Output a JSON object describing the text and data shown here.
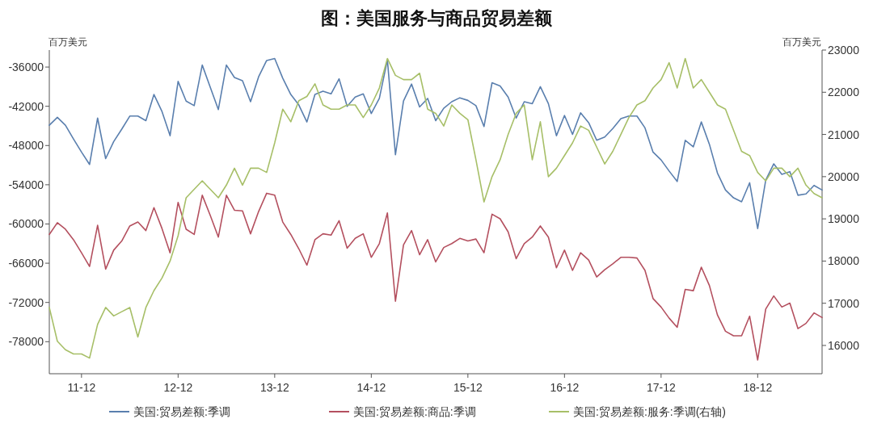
{
  "chart_data": {
    "type": "line",
    "title": "图：美国服务与商品贸易差额",
    "ylabel": "百万美元",
    "y2label": "百万美元",
    "x": [
      "2011-08",
      "2011-09",
      "2011-10",
      "2011-11",
      "2011-12",
      "2012-01",
      "2012-02",
      "2012-03",
      "2012-04",
      "2012-05",
      "2012-06",
      "2012-07",
      "2012-08",
      "2012-09",
      "2012-10",
      "2012-11",
      "2012-12",
      "2013-01",
      "2013-02",
      "2013-03",
      "2013-04",
      "2013-05",
      "2013-06",
      "2013-07",
      "2013-08",
      "2013-09",
      "2013-10",
      "2013-11",
      "2013-12",
      "2014-01",
      "2014-02",
      "2014-03",
      "2014-04",
      "2014-05",
      "2014-06",
      "2014-07",
      "2014-08",
      "2014-09",
      "2014-10",
      "2014-11",
      "2014-12",
      "2015-01",
      "2015-02",
      "2015-03",
      "2015-04",
      "2015-05",
      "2015-06",
      "2015-07",
      "2015-08",
      "2015-09",
      "2015-10",
      "2015-11",
      "2015-12",
      "2016-01",
      "2016-02",
      "2016-03",
      "2016-04",
      "2016-05",
      "2016-06",
      "2016-07",
      "2016-08",
      "2016-09",
      "2016-10",
      "2016-11",
      "2016-12",
      "2017-01",
      "2017-02",
      "2017-03",
      "2017-04",
      "2017-05",
      "2017-06",
      "2017-07",
      "2017-08",
      "2017-09",
      "2017-10",
      "2017-11",
      "2017-12",
      "2018-01",
      "2018-02",
      "2018-03",
      "2018-04",
      "2018-05",
      "2018-06",
      "2018-07",
      "2018-08",
      "2018-09",
      "2018-10",
      "2018-11",
      "2018-12",
      "2019-01",
      "2019-02",
      "2019-03",
      "2019-04",
      "2019-05",
      "2019-06",
      "2019-07",
      "2019-08"
    ],
    "series": [
      {
        "name": "美国:贸易差额:季调",
        "color": "#5a7fae",
        "values": [
          -44900,
          -43700,
          -44900,
          -47000,
          -49000,
          -50900,
          -43800,
          -50000,
          -47400,
          -45500,
          -43500,
          -43500,
          -44200,
          -40200,
          -42800,
          -46500,
          -38200,
          -41200,
          -41900,
          -35700,
          -39100,
          -42500,
          -35700,
          -37600,
          -38100,
          -41300,
          -37500,
          -35000,
          -34700,
          -37700,
          -40200,
          -41800,
          -44400,
          -40200,
          -39700,
          -40100,
          -37800,
          -42000,
          -40600,
          -40100,
          -43100,
          -40800,
          -34900,
          -49400,
          -41200,
          -38600,
          -42100,
          -40800,
          -44200,
          -42300,
          -41300,
          -40700,
          -41100,
          -41900,
          -45100,
          -38400,
          -38900,
          -40600,
          -43800,
          -41300,
          -41600,
          -39000,
          -41600,
          -46500,
          -43400,
          -46300,
          -43000,
          -44500,
          -47200,
          -46700,
          -45400,
          -43900,
          -43500,
          -43500,
          -45300,
          -49000,
          -50200,
          -51900,
          -53500,
          -47200,
          -48200,
          -44400,
          -47800,
          -52200,
          -54800,
          -56000,
          -56600,
          -53700,
          -60700,
          -53300,
          -50800,
          -52400,
          -52000,
          -55600,
          -55400,
          -54100,
          -54800
        ]
      },
      {
        "name": "美国:贸易差额:商品:季调",
        "color": "#b4505f",
        "values": [
          -61600,
          -59800,
          -60800,
          -62400,
          -64400,
          -66500,
          -60200,
          -66900,
          -64000,
          -62600,
          -60300,
          -59700,
          -61000,
          -57500,
          -60700,
          -64400,
          -56700,
          -60800,
          -61600,
          -55600,
          -58700,
          -62000,
          -55600,
          -57900,
          -58000,
          -61500,
          -58100,
          -55300,
          -55600,
          -59700,
          -61600,
          -63800,
          -66300,
          -62400,
          -61500,
          -61700,
          -59500,
          -63700,
          -62200,
          -61500,
          -65100,
          -63000,
          -58300,
          -71800,
          -63200,
          -61000,
          -64700,
          -62400,
          -65800,
          -63600,
          -63000,
          -62200,
          -62600,
          -62300,
          -64400,
          -58500,
          -59200,
          -61200,
          -65300,
          -63000,
          -62000,
          -60300,
          -62000,
          -66700,
          -64000,
          -67100,
          -64400,
          -65500,
          -68100,
          -67000,
          -66100,
          -65100,
          -65100,
          -65200,
          -67100,
          -71400,
          -72700,
          -74400,
          -75800,
          -70000,
          -70200,
          -66600,
          -69400,
          -73900,
          -76400,
          -77100,
          -77100,
          -74100,
          -80800,
          -73000,
          -71000,
          -72700,
          -72100,
          -76000,
          -75200,
          -73600,
          -74300
        ]
      },
      {
        "name": "美国:贸易差额:服务:季调(右轴)",
        "color": "#a7bf68",
        "axis": "y2",
        "values": [
          16900,
          16100,
          15900,
          15800,
          15800,
          15700,
          16500,
          16900,
          16700,
          16800,
          16900,
          16200,
          16900,
          17300,
          17600,
          18000,
          18600,
          19500,
          19700,
          19900,
          19700,
          19500,
          19800,
          20200,
          19800,
          20200,
          20200,
          20100,
          20800,
          21600,
          21300,
          21800,
          21900,
          22200,
          21700,
          21600,
          21600,
          21700,
          21700,
          21400,
          21700,
          22100,
          22800,
          22400,
          22300,
          22300,
          22450,
          21600,
          21500,
          21200,
          21700,
          21500,
          21350,
          20400,
          19400,
          20000,
          20400,
          21000,
          21500,
          21700,
          20400,
          21300,
          20000,
          20200,
          20500,
          20800,
          21200,
          21100,
          20700,
          20300,
          20600,
          21000,
          21400,
          21700,
          21800,
          22100,
          22300,
          22700,
          22100,
          22800,
          22100,
          22300,
          22000,
          21700,
          21600,
          21100,
          20600,
          20500,
          20100,
          19900,
          20200,
          20200,
          20000,
          20200,
          19800,
          19600,
          19500
        ]
      }
    ],
    "xlim": [
      "2011-08",
      "2019-08"
    ],
    "xticks": [
      {
        "value": "2011-12",
        "label": "11-12"
      },
      {
        "value": "2012-12",
        "label": "12-12"
      },
      {
        "value": "2013-12",
        "label": "13-12"
      },
      {
        "value": "2014-12",
        "label": "14-12"
      },
      {
        "value": "2015-12",
        "label": "15-12"
      },
      {
        "value": "2016-12",
        "label": "16-12"
      },
      {
        "value": "2017-12",
        "label": "17-12"
      },
      {
        "value": "2018-12",
        "label": "18-12"
      }
    ],
    "ylim": [
      -82900,
      -33400
    ],
    "yticks": [
      -36000,
      -42000,
      -48000,
      -54000,
      -60000,
      -66000,
      -72000,
      -78000
    ],
    "y2lim": [
      15330,
      23000
    ],
    "y2ticks": [
      16000,
      17000,
      18000,
      19000,
      20000,
      21000,
      22000,
      23000
    ],
    "legend": "bottom"
  }
}
